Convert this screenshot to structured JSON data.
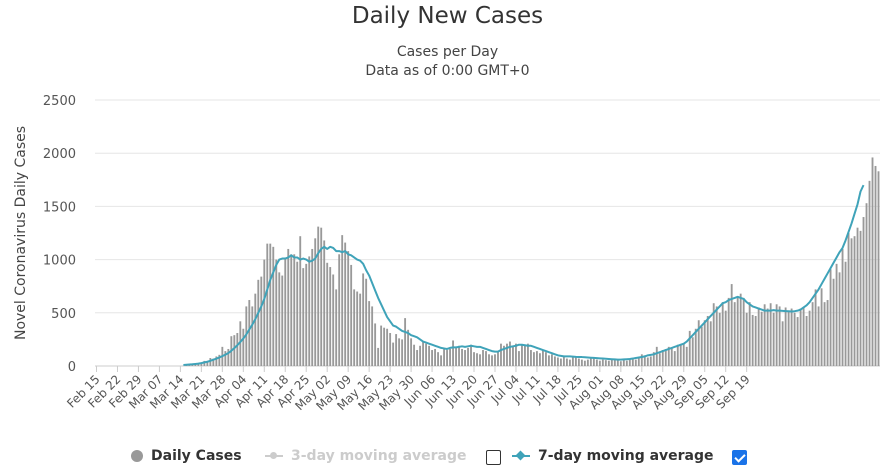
{
  "chart_data": {
    "type": "bar",
    "title": "Daily New Cases",
    "subtitle_lines": [
      "Cases per Day",
      "Data as of 0:00 GMT+0"
    ],
    "ylabel": "Novel Coronavirus Daily Cases",
    "xlabel": "",
    "ylim": [
      0,
      2500
    ],
    "yticks": [
      0,
      500,
      1000,
      1500,
      2000,
      2500
    ],
    "grid": true,
    "legend_position": "bottom",
    "x_tick_labels": [
      "Feb 15",
      "Feb 22",
      "Feb 29",
      "Mar 07",
      "Mar 14",
      "Mar 21",
      "Mar 28",
      "Apr 04",
      "Apr 11",
      "Apr 18",
      "Apr 25",
      "May 02",
      "May 09",
      "May 16",
      "May 23",
      "May 30",
      "Jun 06",
      "Jun 13",
      "Jun 20",
      "Jun 27",
      "Jul 04",
      "Jul 11",
      "Jul 18",
      "Jul 25",
      "Aug 01",
      "Aug 08",
      "Aug 15",
      "Aug 22",
      "Aug 29",
      "Sep 05",
      "Sep 12",
      "Sep 19"
    ],
    "series": [
      {
        "name": "Daily Cases",
        "kind": "bar",
        "color": "#999999",
        "values": [
          0,
          0,
          0,
          0,
          0,
          0,
          0,
          0,
          0,
          0,
          0,
          0,
          0,
          0,
          0,
          0,
          0,
          0,
          0,
          0,
          0,
          0,
          0,
          0,
          0,
          0,
          0,
          0,
          0,
          2,
          5,
          8,
          12,
          18,
          22,
          30,
          48,
          40,
          75,
          70,
          90,
          105,
          180,
          140,
          160,
          280,
          290,
          310,
          420,
          350,
          560,
          620,
          560,
          680,
          810,
          840,
          1000,
          1150,
          1150,
          1120,
          1000,
          880,
          850,
          1020,
          1100,
          1050,
          1050,
          980,
          1220,
          920,
          960,
          1030,
          1100,
          1200,
          1310,
          1300,
          1180,
          970,
          930,
          860,
          720,
          1050,
          1230,
          1160,
          1080,
          950,
          720,
          700,
          680,
          870,
          820,
          610,
          560,
          400,
          170,
          380,
          360,
          350,
          310,
          220,
          300,
          260,
          250,
          450,
          340,
          260,
          200,
          150,
          190,
          230,
          210,
          190,
          150,
          160,
          130,
          100,
          170,
          150,
          160,
          240,
          180,
          190,
          160,
          150,
          170,
          200,
          130,
          120,
          110,
          150,
          140,
          110,
          100,
          110,
          130,
          210,
          190,
          210,
          230,
          180,
          210,
          140,
          200,
          190,
          210,
          150,
          130,
          140,
          120,
          150,
          130,
          100,
          110,
          90,
          80,
          70,
          90,
          70,
          60,
          90,
          80,
          70,
          60,
          50,
          60,
          80,
          70,
          60,
          50,
          60,
          55,
          50,
          60,
          65,
          55,
          45,
          60,
          50,
          60,
          70,
          60,
          80,
          110,
          100,
          80,
          90,
          130,
          180,
          120,
          150,
          160,
          180,
          170,
          140,
          200,
          200,
          210,
          180,
          330,
          270,
          350,
          430,
          370,
          430,
          470,
          420,
          590,
          560,
          500,
          600,
          520,
          640,
          770,
          600,
          650,
          680,
          640,
          500,
          600,
          480,
          470,
          550,
          510,
          580,
          540,
          590,
          500,
          580,
          560,
          420,
          550,
          510,
          540,
          500,
          460,
          540,
          550,
          470,
          520,
          600,
          720,
          560,
          730,
          600,
          620,
          910,
          820,
          960,
          880,
          1100,
          980,
          1250,
          1200,
          1220,
          1300,
          1270,
          1400,
          1530,
          1740,
          1960,
          1880,
          1830
        ]
      },
      {
        "name": "3-day moving average",
        "kind": "line",
        "color": "#cccccc",
        "enabled": false,
        "values": []
      },
      {
        "name": "7-day moving average",
        "kind": "line",
        "color": "#3fa3b9",
        "enabled": true,
        "values": [
          0,
          0,
          0,
          0,
          0,
          0,
          0,
          0,
          0,
          0,
          0,
          0,
          0,
          0,
          0,
          0,
          0,
          0,
          0,
          0,
          0,
          0,
          0,
          0,
          0,
          0,
          0,
          0,
          0,
          10,
          12,
          14,
          16,
          19,
          22,
          27,
          34,
          40,
          49,
          59,
          69,
          80,
          93,
          106,
          122,
          143,
          168,
          195,
          226,
          258,
          297,
          343,
          389,
          440,
          500,
          560,
          630,
          720,
          810,
          880,
          950,
          1000,
          1010,
          1010,
          1020,
          1040,
          1020,
          1020,
          1000,
          1010,
          1000,
          980,
          990,
          1010,
          1060,
          1100,
          1120,
          1100,
          1120,
          1110,
          1080,
          1080,
          1070,
          1080,
          1050,
          1040,
          1020,
          1000,
          990,
          960,
          900,
          850,
          780,
          710,
          640,
          580,
          520,
          460,
          420,
          380,
          370,
          350,
          330,
          320,
          310,
          290,
          280,
          270,
          250,
          230,
          220,
          210,
          200,
          190,
          180,
          170,
          165,
          160,
          170,
          175,
          175,
          180,
          185,
          180,
          185,
          190,
          185,
          180,
          180,
          170,
          160,
          150,
          140,
          135,
          135,
          150,
          160,
          170,
          180,
          185,
          190,
          200,
          200,
          195,
          190,
          190,
          180,
          170,
          160,
          150,
          140,
          130,
          120,
          110,
          100,
          95,
          90,
          90,
          90,
          88,
          86,
          85,
          84,
          82,
          80,
          78,
          76,
          74,
          72,
          70,
          68,
          66,
          64,
          62,
          60,
          60,
          62,
          64,
          66,
          70,
          75,
          80,
          85,
          90,
          100,
          105,
          110,
          120,
          130,
          140,
          150,
          160,
          170,
          180,
          190,
          200,
          210,
          230,
          260,
          290,
          320,
          350,
          380,
          410,
          440,
          470,
          500,
          530,
          560,
          590,
          600,
          620,
          630,
          640,
          650,
          640,
          630,
          600,
          580,
          560,
          550,
          540,
          530,
          520,
          520,
          520,
          525,
          520,
          520,
          518,
          516,
          514,
          512,
          515,
          520,
          530,
          550,
          570,
          600,
          640,
          680,
          720,
          770,
          820,
          870,
          920,
          970,
          1020,
          1070,
          1110,
          1180,
          1260,
          1340,
          1430,
          1520,
          1640,
          1700
        ]
      }
    ]
  },
  "legend": {
    "items": [
      {
        "label": "Daily Cases",
        "color": "#999999",
        "enabled": true
      },
      {
        "label": "3-day moving average",
        "color": "#cccccc",
        "enabled": false
      },
      {
        "label": "7-day moving average",
        "color": "#3fa3b9",
        "enabled": true
      }
    ],
    "checkbox_3day_checked": false,
    "checkbox_7day_checked": true
  }
}
